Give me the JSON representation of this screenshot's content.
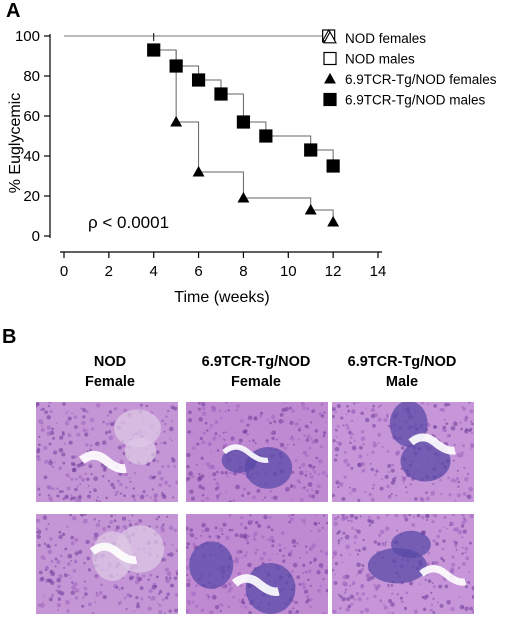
{
  "panels": {
    "a_label": "A",
    "b_label": "B"
  },
  "chart_data": {
    "type": "line",
    "title": "",
    "xlabel": "Time (weeks)",
    "ylabel": "% Euglycemic",
    "xlim": [
      0,
      14
    ],
    "ylim": [
      0,
      100
    ],
    "x_ticks": [
      "0",
      "2",
      "4",
      "6",
      "8",
      "10",
      "12",
      "14"
    ],
    "y_ticks": [
      "0",
      "20",
      "40",
      "60",
      "80",
      "100"
    ],
    "annotation": "ρ < 0.0001",
    "legend_position": "top-right",
    "grid": false,
    "series": [
      {
        "name": "NOD females",
        "marker": "open-triangle",
        "color": "#000000",
        "x": [
          0,
          4,
          11.8
        ],
        "y": [
          100,
          100,
          100
        ]
      },
      {
        "name": "NOD males",
        "marker": "open-square",
        "color": "#000000",
        "x": [
          0,
          4,
          11.8
        ],
        "y": [
          100,
          100,
          100
        ]
      },
      {
        "name": "6.9TCR-Tg/NOD females",
        "marker": "filled-triangle",
        "color": "#000000",
        "x": [
          4,
          5,
          6,
          8,
          11,
          12
        ],
        "y": [
          93,
          57,
          32,
          19,
          13,
          7
        ]
      },
      {
        "name": "6.9TCR-Tg/NOD males",
        "marker": "filled-square",
        "color": "#000000",
        "x": [
          4,
          5,
          6,
          7,
          8,
          9,
          11,
          12
        ],
        "y": [
          93,
          85,
          78,
          71,
          57,
          50,
          43,
          35
        ]
      }
    ]
  },
  "histology": {
    "columns": [
      {
        "line1": "NOD",
        "line2": "Female",
        "tint": "#c596d6"
      },
      {
        "line1": "6.9TCR-Tg/NOD",
        "line2": "Female",
        "tint": "#c08ad2"
      },
      {
        "line1": "6.9TCR-Tg/NOD",
        "line2": "Male",
        "tint": "#c696d8"
      }
    ]
  }
}
